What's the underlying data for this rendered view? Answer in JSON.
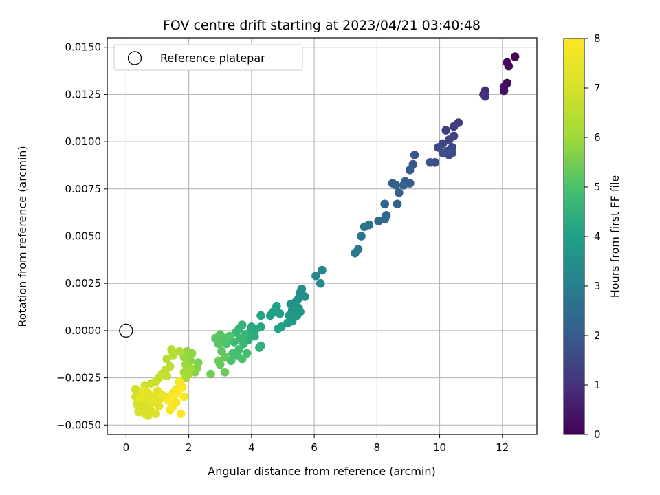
{
  "chart_data": {
    "type": "scatter",
    "title": "FOV centre drift starting at 2023/04/21 03:40:48",
    "xlabel": "Angular distance from reference (arcmin)",
    "ylabel": "Rotation from reference (arcmin)",
    "xlim": [
      -0.6,
      13.1
    ],
    "ylim": [
      -0.0055,
      0.0155
    ],
    "x_ticks": [
      0,
      2,
      4,
      6,
      8,
      10,
      12
    ],
    "x_tick_labels": [
      "0",
      "2",
      "4",
      "6",
      "8",
      "10",
      "12"
    ],
    "y_ticks": [
      -0.005,
      -0.0025,
      0.0,
      0.0025,
      0.005,
      0.0075,
      0.01,
      0.0125,
      0.015
    ],
    "y_tick_labels": [
      "−0.0050",
      "−0.0025",
      "0.0000",
      "0.0025",
      "0.0050",
      "0.0075",
      "0.0100",
      "0.0125",
      "0.0150"
    ],
    "grid": true,
    "colormap": "viridis",
    "colorbar": {
      "label": "Hours from first FF file",
      "range": [
        0,
        8
      ],
      "ticks": [
        0,
        1,
        2,
        3,
        4,
        5,
        6,
        7,
        8
      ]
    },
    "legend": {
      "position": "top-left",
      "entries": [
        "Reference platepar"
      ]
    },
    "reference_point": {
      "x": 0.0,
      "y": 0.0,
      "label": "Reference platepar"
    },
    "points": [
      {
        "x": 12.4,
        "y": 0.0145,
        "c": 0.05
      },
      {
        "x": 12.15,
        "y": 0.0142,
        "c": 0.1
      },
      {
        "x": 12.2,
        "y": 0.014,
        "c": 0.15
      },
      {
        "x": 12.15,
        "y": 0.0131,
        "c": 0.2
      },
      {
        "x": 12.05,
        "y": 0.0129,
        "c": 0.25
      },
      {
        "x": 12.05,
        "y": 0.0127,
        "c": 0.3
      },
      {
        "x": 11.45,
        "y": 0.0127,
        "c": 0.9
      },
      {
        "x": 11.4,
        "y": 0.0125,
        "c": 0.95
      },
      {
        "x": 11.45,
        "y": 0.0124,
        "c": 1.0
      },
      {
        "x": 10.6,
        "y": 0.011,
        "c": 1.2
      },
      {
        "x": 10.45,
        "y": 0.0108,
        "c": 1.25
      },
      {
        "x": 10.2,
        "y": 0.0106,
        "c": 1.3
      },
      {
        "x": 10.45,
        "y": 0.0103,
        "c": 1.35
      },
      {
        "x": 10.3,
        "y": 0.0101,
        "c": 1.4
      },
      {
        "x": 10.1,
        "y": 0.0099,
        "c": 1.45
      },
      {
        "x": 10.4,
        "y": 0.0097,
        "c": 1.5
      },
      {
        "x": 9.95,
        "y": 0.0097,
        "c": 1.55
      },
      {
        "x": 10.25,
        "y": 0.0095,
        "c": 1.6
      },
      {
        "x": 10.3,
        "y": 0.0093,
        "c": 1.6
      },
      {
        "x": 10.4,
        "y": 0.0094,
        "c": 1.65
      },
      {
        "x": 10.1,
        "y": 0.0094,
        "c": 1.65
      },
      {
        "x": 9.85,
        "y": 0.0089,
        "c": 1.7
      },
      {
        "x": 9.7,
        "y": 0.0089,
        "c": 1.75
      },
      {
        "x": 9.2,
        "y": 0.0093,
        "c": 1.85
      },
      {
        "x": 9.15,
        "y": 0.0088,
        "c": 1.9
      },
      {
        "x": 9.05,
        "y": 0.0085,
        "c": 1.95
      },
      {
        "x": 8.9,
        "y": 0.0079,
        "c": 2.0
      },
      {
        "x": 9.05,
        "y": 0.0078,
        "c": 2.0
      },
      {
        "x": 8.5,
        "y": 0.0078,
        "c": 2.05
      },
      {
        "x": 8.6,
        "y": 0.0077,
        "c": 2.1
      },
      {
        "x": 8.85,
        "y": 0.0077,
        "c": 2.1
      },
      {
        "x": 8.7,
        "y": 0.0073,
        "c": 2.15
      },
      {
        "x": 8.65,
        "y": 0.0067,
        "c": 2.2
      },
      {
        "x": 8.25,
        "y": 0.0067,
        "c": 2.25
      },
      {
        "x": 8.3,
        "y": 0.0061,
        "c": 2.3
      },
      {
        "x": 8.25,
        "y": 0.0059,
        "c": 2.35
      },
      {
        "x": 8.05,
        "y": 0.0058,
        "c": 2.4
      },
      {
        "x": 7.75,
        "y": 0.0056,
        "c": 2.6
      },
      {
        "x": 7.6,
        "y": 0.0055,
        "c": 2.65
      },
      {
        "x": 7.5,
        "y": 0.005,
        "c": 2.7
      },
      {
        "x": 7.4,
        "y": 0.0043,
        "c": 2.8
      },
      {
        "x": 7.3,
        "y": 0.0041,
        "c": 2.85
      },
      {
        "x": 6.25,
        "y": 0.0032,
        "c": 3.2
      },
      {
        "x": 6.05,
        "y": 0.0029,
        "c": 3.25
      },
      {
        "x": 6.2,
        "y": 0.0025,
        "c": 3.3
      },
      {
        "x": 5.6,
        "y": 0.0022,
        "c": 3.4
      },
      {
        "x": 5.55,
        "y": 0.002,
        "c": 3.45
      },
      {
        "x": 5.7,
        "y": 0.0018,
        "c": 3.45
      },
      {
        "x": 5.5,
        "y": 0.0017,
        "c": 3.5
      },
      {
        "x": 5.4,
        "y": 0.0015,
        "c": 3.55
      },
      {
        "x": 5.25,
        "y": 0.0014,
        "c": 3.6
      },
      {
        "x": 5.5,
        "y": 0.0012,
        "c": 3.6
      },
      {
        "x": 5.3,
        "y": 0.0011,
        "c": 3.65
      },
      {
        "x": 5.55,
        "y": 0.001,
        "c": 3.65
      },
      {
        "x": 5.35,
        "y": 0.0009,
        "c": 3.7
      },
      {
        "x": 5.2,
        "y": 0.0008,
        "c": 3.7
      },
      {
        "x": 5.45,
        "y": 0.0008,
        "c": 3.75
      },
      {
        "x": 5.3,
        "y": 0.0005,
        "c": 3.8
      },
      {
        "x": 5.15,
        "y": 0.0004,
        "c": 3.85
      },
      {
        "x": 4.9,
        "y": 0.0009,
        "c": 3.9
      },
      {
        "x": 4.8,
        "y": 0.0013,
        "c": 3.9
      },
      {
        "x": 4.7,
        "y": 0.001,
        "c": 3.95
      },
      {
        "x": 4.6,
        "y": 0.0008,
        "c": 4.0
      },
      {
        "x": 4.95,
        "y": 0.0002,
        "c": 4.0
      },
      {
        "x": 4.85,
        "y": 0.0001,
        "c": 4.05
      },
      {
        "x": 4.3,
        "y": 0.0008,
        "c": 4.1
      },
      {
        "x": 4.3,
        "y": 0.0002,
        "c": 4.15
      },
      {
        "x": 4.15,
        "y": 0.0001,
        "c": 4.2
      },
      {
        "x": 4.0,
        "y": 0.0002,
        "c": 4.25
      },
      {
        "x": 3.95,
        "y": -0.0001,
        "c": 4.3
      },
      {
        "x": 4.1,
        "y": -0.0003,
        "c": 4.35
      },
      {
        "x": 3.9,
        "y": -0.0005,
        "c": 4.4
      },
      {
        "x": 4.3,
        "y": -0.0008,
        "c": 4.45
      },
      {
        "x": 4.25,
        "y": -0.0009,
        "c": 4.5
      },
      {
        "x": 3.7,
        "y": 0.0003,
        "c": 4.55
      },
      {
        "x": 3.6,
        "y": 0.0001,
        "c": 4.6
      },
      {
        "x": 3.8,
        "y": -0.0002,
        "c": 4.6
      },
      {
        "x": 3.5,
        "y": -0.0001,
        "c": 4.65
      },
      {
        "x": 3.65,
        "y": -0.0004,
        "c": 4.7
      },
      {
        "x": 3.75,
        "y": -0.0007,
        "c": 4.7
      },
      {
        "x": 3.45,
        "y": -0.0006,
        "c": 4.75
      },
      {
        "x": 3.6,
        "y": -0.001,
        "c": 4.8
      },
      {
        "x": 3.85,
        "y": -0.0012,
        "c": 4.85
      },
      {
        "x": 3.55,
        "y": -0.0013,
        "c": 4.9
      },
      {
        "x": 3.4,
        "y": -0.0012,
        "c": 4.95
      },
      {
        "x": 3.7,
        "y": -0.0015,
        "c": 5.0
      },
      {
        "x": 3.35,
        "y": -0.0016,
        "c": 5.0
      },
      {
        "x": 3.2,
        "y": -0.0007,
        "c": 5.05
      },
      {
        "x": 3.1,
        "y": -0.0004,
        "c": 5.1
      },
      {
        "x": 3.3,
        "y": -0.0003,
        "c": 5.1
      },
      {
        "x": 3.0,
        "y": -0.0002,
        "c": 5.15
      },
      {
        "x": 2.85,
        "y": -0.0004,
        "c": 5.2
      },
      {
        "x": 2.95,
        "y": -0.0007,
        "c": 5.2
      },
      {
        "x": 3.05,
        "y": -0.0011,
        "c": 5.25
      },
      {
        "x": 3.15,
        "y": -0.0014,
        "c": 5.3
      },
      {
        "x": 2.95,
        "y": -0.0016,
        "c": 5.35
      },
      {
        "x": 3.0,
        "y": -0.0018,
        "c": 5.35
      },
      {
        "x": 3.15,
        "y": -0.0022,
        "c": 5.4
      },
      {
        "x": 2.7,
        "y": -0.0023,
        "c": 5.45
      },
      {
        "x": 2.3,
        "y": -0.0017,
        "c": 5.6
      },
      {
        "x": 2.25,
        "y": -0.002,
        "c": 5.65
      },
      {
        "x": 2.2,
        "y": -0.0022,
        "c": 5.7
      },
      {
        "x": 2.05,
        "y": -0.0016,
        "c": 5.75
      },
      {
        "x": 2.0,
        "y": -0.0013,
        "c": 5.8
      },
      {
        "x": 1.95,
        "y": -0.0011,
        "c": 5.85
      },
      {
        "x": 2.1,
        "y": -0.0012,
        "c": 5.85
      },
      {
        "x": 1.85,
        "y": -0.0014,
        "c": 5.9
      },
      {
        "x": 1.9,
        "y": -0.0018,
        "c": 5.95
      },
      {
        "x": 2.05,
        "y": -0.002,
        "c": 6.0
      },
      {
        "x": 1.85,
        "y": -0.0022,
        "c": 6.05
      },
      {
        "x": 2.0,
        "y": -0.0023,
        "c": 6.1
      },
      {
        "x": 1.9,
        "y": -0.0025,
        "c": 6.15
      },
      {
        "x": 1.7,
        "y": -0.0011,
        "c": 6.3
      },
      {
        "x": 1.45,
        "y": -0.001,
        "c": 6.35
      },
      {
        "x": 1.5,
        "y": -0.0013,
        "c": 6.4
      },
      {
        "x": 1.3,
        "y": -0.0015,
        "c": 6.45
      },
      {
        "x": 1.4,
        "y": -0.0019,
        "c": 6.5
      },
      {
        "x": 1.25,
        "y": -0.0021,
        "c": 6.55
      },
      {
        "x": 1.15,
        "y": -0.0023,
        "c": 6.6
      },
      {
        "x": 1.3,
        "y": -0.0024,
        "c": 6.65
      },
      {
        "x": 1.05,
        "y": -0.0025,
        "c": 6.7
      },
      {
        "x": 0.95,
        "y": -0.0027,
        "c": 6.75
      },
      {
        "x": 0.8,
        "y": -0.0028,
        "c": 6.8
      },
      {
        "x": 0.6,
        "y": -0.0029,
        "c": 6.85
      },
      {
        "x": 0.3,
        "y": -0.0031,
        "c": 6.9
      },
      {
        "x": 0.45,
        "y": -0.0034,
        "c": 6.9
      },
      {
        "x": 0.3,
        "y": -0.0035,
        "c": 6.95
      },
      {
        "x": 0.5,
        "y": -0.0038,
        "c": 7.0
      },
      {
        "x": 0.35,
        "y": -0.0039,
        "c": 7.0
      },
      {
        "x": 0.55,
        "y": -0.0041,
        "c": 7.05
      },
      {
        "x": 0.4,
        "y": -0.0043,
        "c": 7.05
      },
      {
        "x": 0.6,
        "y": -0.0044,
        "c": 7.1
      },
      {
        "x": 0.7,
        "y": -0.0045,
        "c": 7.1
      },
      {
        "x": 0.8,
        "y": -0.0043,
        "c": 7.15
      },
      {
        "x": 0.95,
        "y": -0.0044,
        "c": 7.15
      },
      {
        "x": 0.75,
        "y": -0.004,
        "c": 7.2
      },
      {
        "x": 0.65,
        "y": -0.0036,
        "c": 7.2
      },
      {
        "x": 0.85,
        "y": -0.0035,
        "c": 7.25
      },
      {
        "x": 0.7,
        "y": -0.0033,
        "c": 7.25
      },
      {
        "x": 1.0,
        "y": -0.0032,
        "c": 7.3
      },
      {
        "x": 1.1,
        "y": -0.0036,
        "c": 7.3
      },
      {
        "x": 0.9,
        "y": -0.0038,
        "c": 7.35
      },
      {
        "x": 1.05,
        "y": -0.004,
        "c": 7.35
      },
      {
        "x": 1.15,
        "y": -0.0034,
        "c": 7.4
      },
      {
        "x": 0.55,
        "y": -0.0032,
        "c": 7.4
      },
      {
        "x": 0.45,
        "y": -0.0036,
        "c": 7.45
      },
      {
        "x": 1.25,
        "y": -0.0035,
        "c": 7.55
      },
      {
        "x": 1.4,
        "y": -0.0036,
        "c": 7.6
      },
      {
        "x": 1.5,
        "y": -0.0033,
        "c": 7.65
      },
      {
        "x": 1.6,
        "y": -0.0031,
        "c": 7.7
      },
      {
        "x": 1.75,
        "y": -0.0029,
        "c": 7.75
      },
      {
        "x": 1.7,
        "y": -0.0027,
        "c": 7.8
      },
      {
        "x": 1.85,
        "y": -0.0035,
        "c": 7.8
      },
      {
        "x": 1.6,
        "y": -0.0038,
        "c": 7.85
      },
      {
        "x": 1.5,
        "y": -0.004,
        "c": 7.85
      },
      {
        "x": 1.4,
        "y": -0.0042,
        "c": 7.9
      },
      {
        "x": 1.75,
        "y": -0.0044,
        "c": 7.9
      },
      {
        "x": 1.55,
        "y": -0.0034,
        "c": 7.95
      },
      {
        "x": 1.35,
        "y": -0.0037,
        "c": 7.95
      },
      {
        "x": 1.65,
        "y": -0.0032,
        "c": 8.0
      },
      {
        "x": 1.8,
        "y": -0.003,
        "c": 8.0
      }
    ]
  }
}
